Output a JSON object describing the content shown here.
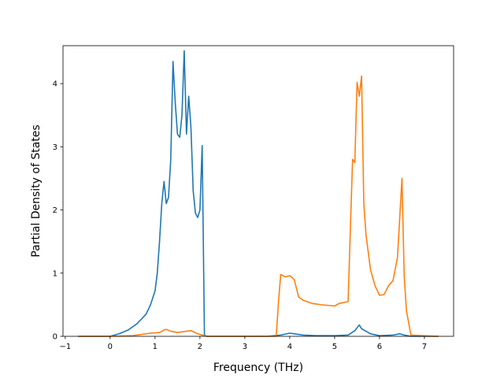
{
  "chart_data": {
    "type": "line",
    "title": "",
    "xlabel": "Frequency (THz)",
    "ylabel": "Partial Density of States",
    "xlim": [
      -1.05,
      7.65
    ],
    "ylim": [
      0,
      4.6
    ],
    "x_ticks": [
      -1,
      0,
      1,
      2,
      3,
      4,
      5,
      6,
      7
    ],
    "x_tick_labels": [
      "−1",
      "0",
      "1",
      "2",
      "3",
      "4",
      "5",
      "6",
      "7"
    ],
    "y_ticks": [
      0,
      1,
      2,
      3,
      4
    ],
    "y_tick_labels": [
      "0",
      "1",
      "2",
      "3",
      "4"
    ],
    "grid": false,
    "legend": "none",
    "series": [
      {
        "color": "#1f77b4",
        "x": [
          -0.7,
          0.0,
          0.2,
          0.4,
          0.6,
          0.8,
          0.9,
          1.0,
          1.05,
          1.1,
          1.15,
          1.2,
          1.25,
          1.3,
          1.35,
          1.4,
          1.45,
          1.5,
          1.55,
          1.6,
          1.65,
          1.7,
          1.75,
          1.8,
          1.85,
          1.9,
          1.95,
          2.0,
          2.05,
          2.1,
          2.15,
          2.5,
          3.0,
          3.5,
          3.8,
          4.0,
          4.1,
          4.3,
          4.6,
          5.0,
          5.3,
          5.45,
          5.55,
          5.6,
          5.7,
          5.8,
          6.0,
          6.3,
          6.45,
          6.55,
          6.7,
          7.3
        ],
        "values": [
          0.0,
          0.0,
          0.04,
          0.1,
          0.2,
          0.35,
          0.5,
          0.72,
          1.0,
          1.5,
          2.1,
          2.45,
          2.1,
          2.2,
          2.8,
          4.35,
          3.7,
          3.2,
          3.15,
          3.5,
          4.52,
          3.2,
          3.8,
          3.3,
          2.3,
          1.95,
          1.88,
          2.0,
          3.02,
          0.02,
          0.0,
          0.0,
          0.0,
          0.0,
          0.02,
          0.05,
          0.04,
          0.02,
          0.01,
          0.01,
          0.02,
          0.09,
          0.18,
          0.12,
          0.08,
          0.04,
          0.01,
          0.02,
          0.04,
          0.02,
          0.0,
          0.0
        ]
      },
      {
        "color": "#ff7f0e",
        "x": [
          -0.7,
          0.0,
          0.5,
          0.9,
          1.1,
          1.2,
          1.25,
          1.35,
          1.5,
          1.7,
          1.8,
          1.95,
          2.1,
          2.15,
          3.0,
          3.7,
          3.75,
          3.8,
          3.9,
          4.0,
          4.1,
          4.2,
          4.3,
          4.5,
          4.7,
          5.0,
          5.1,
          5.3,
          5.4,
          5.45,
          5.5,
          5.55,
          5.6,
          5.65,
          5.7,
          5.8,
          5.9,
          6.0,
          6.1,
          6.2,
          6.3,
          6.4,
          6.5,
          6.55,
          6.6,
          6.7,
          7.3
        ],
        "values": [
          0.0,
          0.0,
          0.01,
          0.05,
          0.06,
          0.1,
          0.11,
          0.08,
          0.06,
          0.08,
          0.09,
          0.04,
          0.01,
          0.0,
          0.0,
          0.0,
          0.55,
          0.98,
          0.94,
          0.96,
          0.9,
          0.62,
          0.57,
          0.52,
          0.5,
          0.48,
          0.52,
          0.55,
          2.8,
          2.75,
          4.02,
          3.8,
          4.12,
          2.1,
          1.6,
          1.05,
          0.8,
          0.65,
          0.66,
          0.8,
          0.88,
          1.25,
          2.5,
          0.95,
          0.4,
          0.02,
          0.0
        ]
      }
    ]
  }
}
